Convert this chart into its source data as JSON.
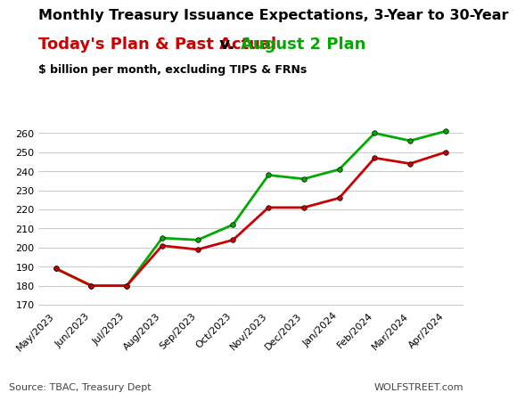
{
  "title_line1": "Monthly Treasury Issuance Expectations, 3-Year to 30-Year",
  "title_line2_red": "Today's Plan & Past Actual",
  "title_line2_mid": " v. ",
  "title_line2_green": "August 2 Plan",
  "subtitle": "$ billion per month, excluding TIPS & FRNs",
  "source": "Source: TBAC, Treasury Dept",
  "watermark": "WOLFSTREET.com",
  "categories": [
    "May/2023",
    "Jun/2023",
    "Jul/2023",
    "Aug/2023",
    "Sep/2023",
    "Oct/2023",
    "Nov/2023",
    "Dec/2023",
    "Jan/2024",
    "Feb/2024",
    "Mar/2024",
    "Apr/2024"
  ],
  "red_values": [
    189,
    180,
    180,
    201,
    199,
    204,
    221,
    221,
    226,
    247,
    244,
    250
  ],
  "green_values": [
    189,
    180,
    180,
    205,
    204,
    212,
    238,
    236,
    241,
    260,
    256,
    261
  ],
  "red_color": "#cc0000",
  "green_color": "#00aa00",
  "ylim": [
    168,
    268
  ],
  "yticks": [
    170,
    180,
    190,
    200,
    210,
    220,
    230,
    240,
    250,
    260
  ],
  "bg_color": "#ffffff",
  "grid_color": "#cccccc",
  "title1_fontsize": 11.5,
  "title2_fontsize": 13.0,
  "subtitle_fontsize": 9.0,
  "axis_fontsize": 8.0,
  "source_fontsize": 8.0,
  "marker_size": 4,
  "linewidth": 2.0
}
